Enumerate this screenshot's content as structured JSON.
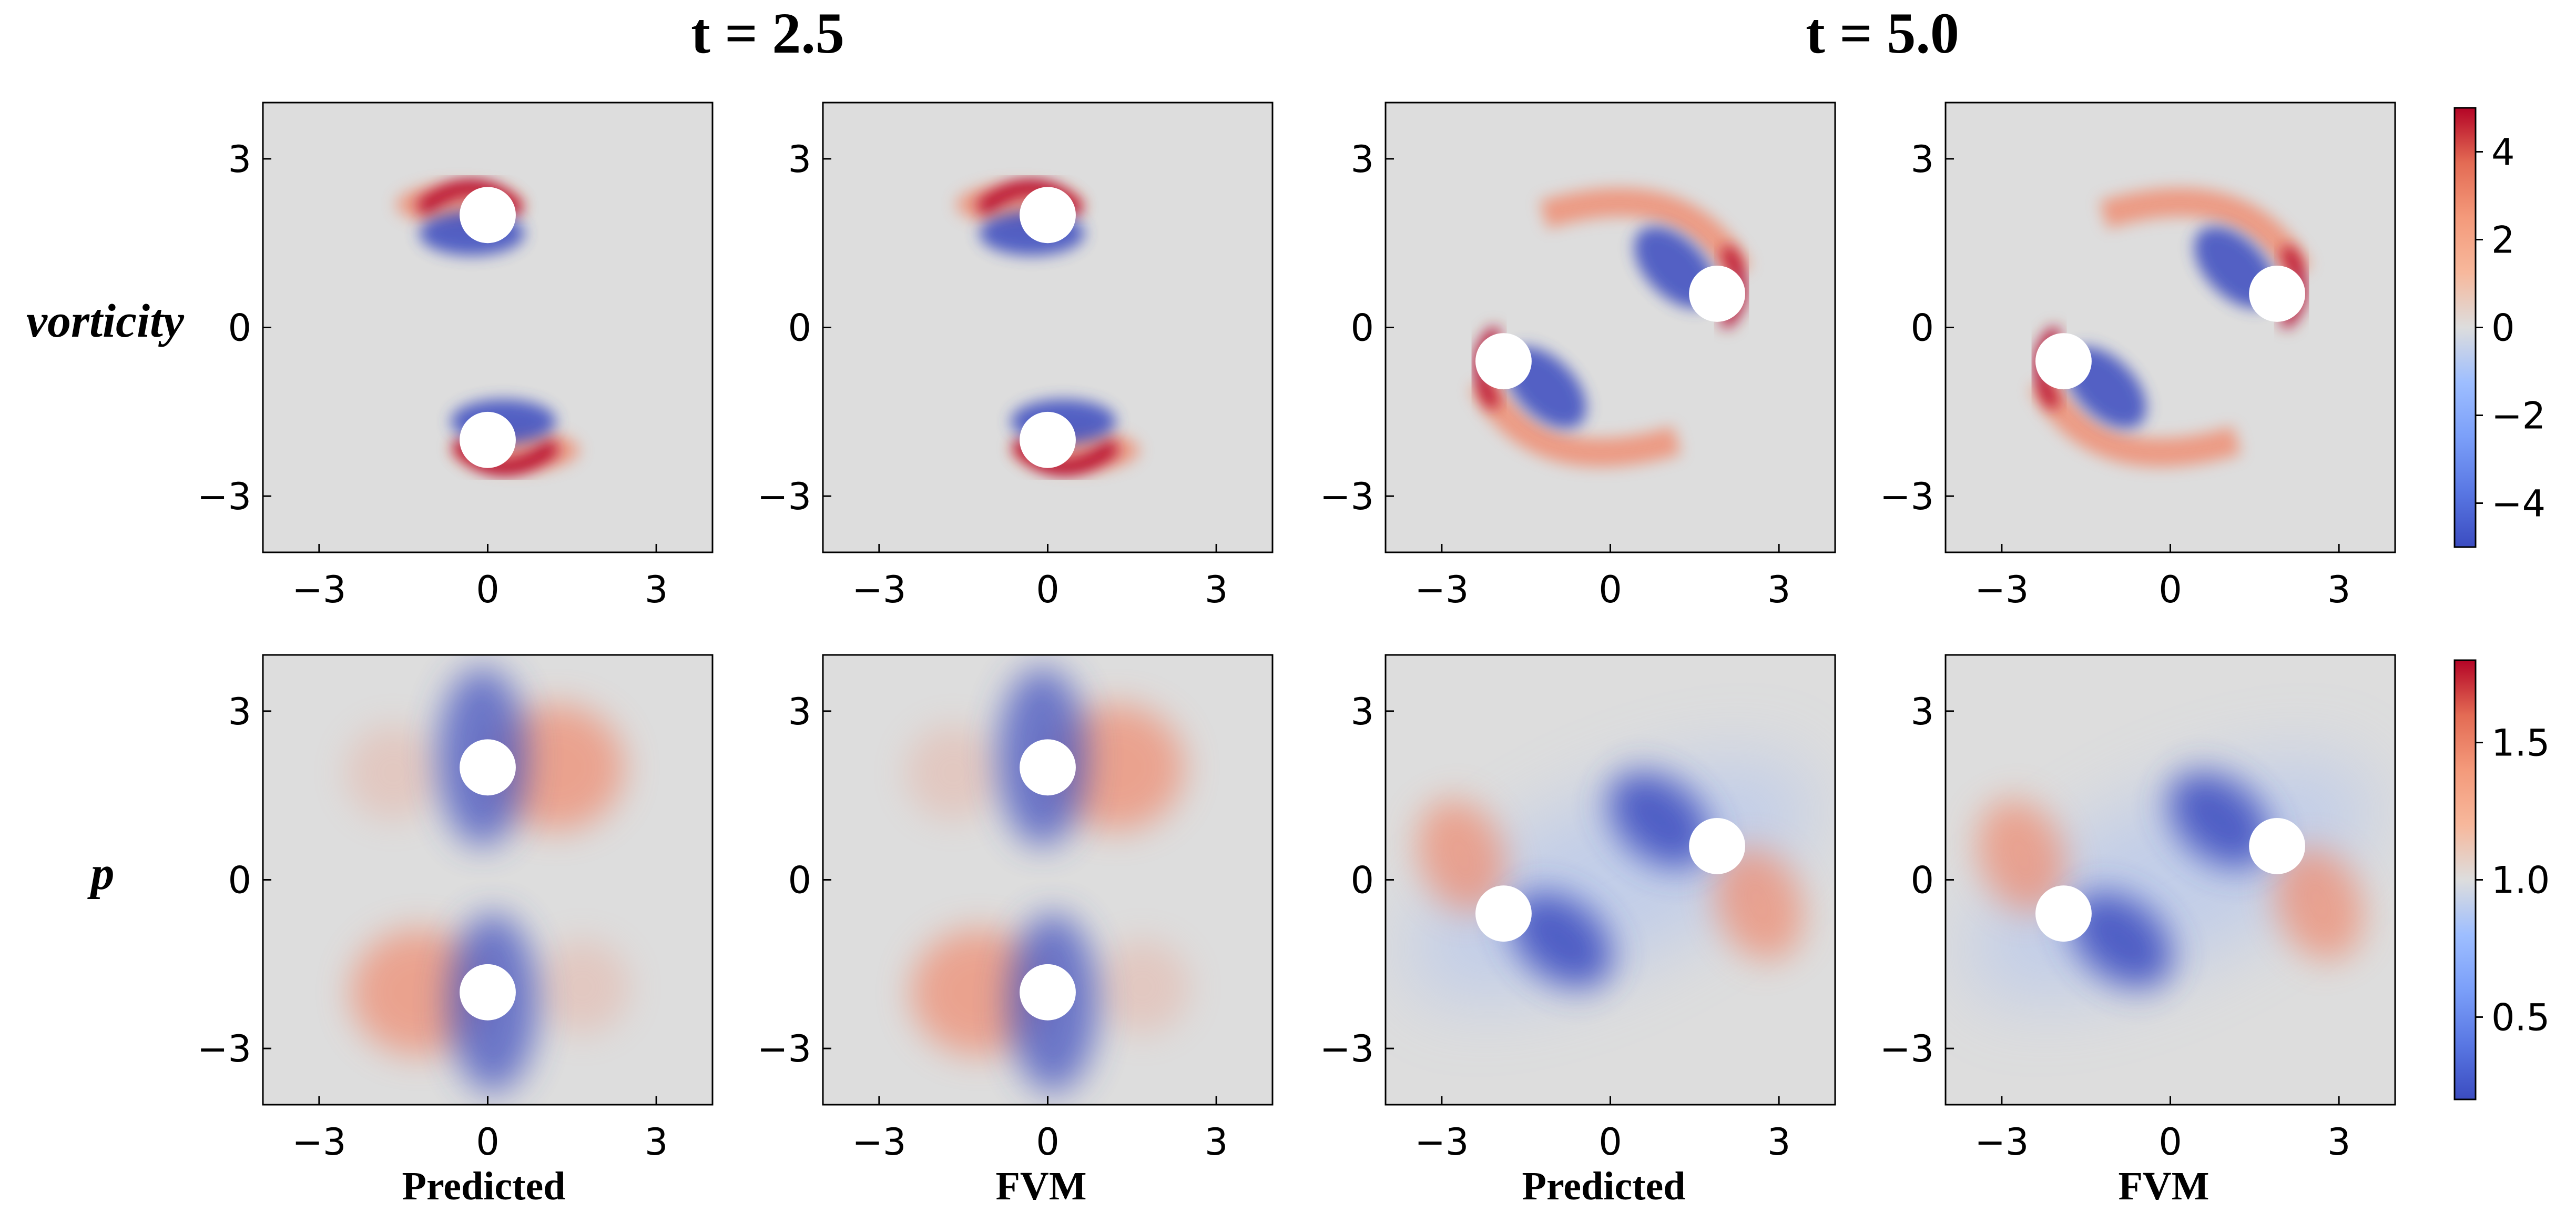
{
  "figure": {
    "column_titles": [
      "t = 2.5",
      "t = 5.0"
    ],
    "row_labels": [
      "vorticity",
      "p"
    ],
    "column_labels": [
      "Predicted",
      "FVM",
      "Predicted",
      "FVM"
    ]
  },
  "chart_data": {
    "type": "heatmap",
    "axes": {
      "xlim": [
        -4,
        4
      ],
      "ylim": [
        -4,
        4
      ],
      "xticks": [
        -3,
        0,
        3
      ],
      "yticks": [
        -3,
        0,
        3
      ],
      "xtick_labels": [
        "−3",
        "0",
        "3"
      ],
      "ytick_labels": [
        "−3",
        "0",
        "3"
      ]
    },
    "fields": [
      {
        "name": "vorticity",
        "colormap": "coolwarm",
        "colorbar": {
          "range": [
            -5,
            5
          ],
          "ticks": [
            4,
            2,
            0,
            -2,
            -4
          ],
          "tick_labels": [
            "4",
            "2",
            "0",
            "−2",
            "−4"
          ]
        }
      },
      {
        "name": "p",
        "colormap": "coolwarm",
        "colorbar": {
          "range": [
            0.2,
            1.8
          ],
          "ticks": [
            1.5,
            1.0,
            0.5
          ],
          "tick_labels": [
            "1.5",
            "1.0",
            "0.5"
          ]
        }
      }
    ],
    "snapshots": [
      {
        "time": 2.5,
        "cylinders": [
          [
            0,
            2
          ],
          [
            0,
            -2
          ]
        ]
      },
      {
        "time": 5.0,
        "cylinders": [
          [
            -1.9,
            -0.6
          ],
          [
            1.9,
            0.6
          ]
        ]
      }
    ],
    "panels": [
      {
        "row": "vorticity",
        "col": "Predicted",
        "time": 2.5
      },
      {
        "row": "vorticity",
        "col": "FVM",
        "time": 2.5
      },
      {
        "row": "vorticity",
        "col": "Predicted",
        "time": 5.0
      },
      {
        "row": "vorticity",
        "col": "FVM",
        "time": 5.0
      },
      {
        "row": "p",
        "col": "Predicted",
        "time": 2.5
      },
      {
        "row": "p",
        "col": "FVM",
        "time": 2.5
      },
      {
        "row": "p",
        "col": "Predicted",
        "time": 5.0
      },
      {
        "row": "p",
        "col": "FVM",
        "time": 5.0
      }
    ],
    "cylinder_radius": 0.5
  }
}
